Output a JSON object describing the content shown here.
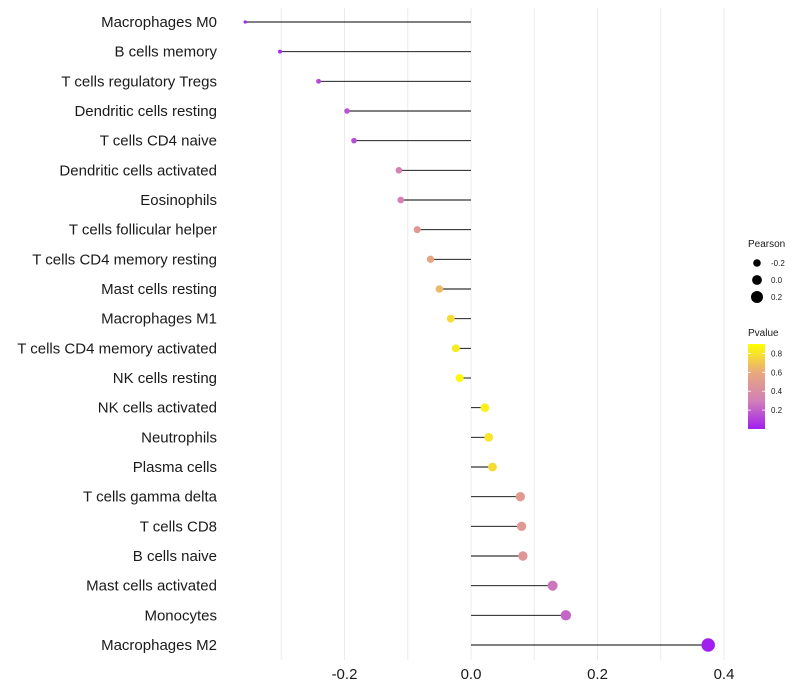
{
  "chart_data": {
    "type": "lollipop",
    "x": {
      "ticks": [
        -0.2,
        0.0,
        0.2,
        0.4
      ],
      "tick_labels": [
        "-0.2",
        "0.0",
        "0.2",
        "0.4"
      ],
      "lim": [
        -0.37,
        0.4
      ],
      "grid_minor": [
        -0.3,
        -0.1,
        0.1,
        0.3
      ]
    },
    "categories": [
      {
        "label": "Macrophages M0",
        "pearson": -0.357,
        "pvalue": 0.01
      },
      {
        "label": "B cells memory",
        "pearson": -0.302,
        "pvalue": 0.05
      },
      {
        "label": "T cells regulatory  Tregs",
        "pearson": -0.241,
        "pvalue": 0.12
      },
      {
        "label": "Dendritic cells resting",
        "pearson": -0.196,
        "pvalue": 0.16
      },
      {
        "label": "T cells CD4 naive",
        "pearson": -0.185,
        "pvalue": 0.14
      },
      {
        "label": "Dendritic cells activated",
        "pearson": -0.114,
        "pvalue": 0.32
      },
      {
        "label": "Eosinophils",
        "pearson": -0.111,
        "pvalue": 0.33
      },
      {
        "label": "T cells follicular helper",
        "pearson": -0.085,
        "pvalue": 0.48
      },
      {
        "label": "T cells CD4 memory resting",
        "pearson": -0.064,
        "pvalue": 0.58
      },
      {
        "label": "Mast cells resting",
        "pearson": -0.05,
        "pvalue": 0.66
      },
      {
        "label": "Macrophages M1",
        "pearson": -0.032,
        "pvalue": 0.78
      },
      {
        "label": "T cells CD4 memory activated",
        "pearson": -0.024,
        "pvalue": 0.83
      },
      {
        "label": "NK cells resting",
        "pearson": -0.018,
        "pvalue": 0.88
      },
      {
        "label": "NK cells activated",
        "pearson": 0.022,
        "pvalue": 0.85
      },
      {
        "label": "Neutrophils",
        "pearson": 0.028,
        "pvalue": 0.81
      },
      {
        "label": "Plasma cells",
        "pearson": 0.034,
        "pvalue": 0.78
      },
      {
        "label": "T cells gamma delta",
        "pearson": 0.078,
        "pvalue": 0.5
      },
      {
        "label": "T cells CD8",
        "pearson": 0.08,
        "pvalue": 0.49
      },
      {
        "label": "B cells naive",
        "pearson": 0.082,
        "pvalue": 0.47
      },
      {
        "label": "Mast cells activated",
        "pearson": 0.129,
        "pvalue": 0.27
      },
      {
        "label": "Monocytes",
        "pearson": 0.15,
        "pvalue": 0.22
      },
      {
        "label": "Macrophages M2",
        "pearson": 0.375,
        "pvalue": 0.001
      }
    ],
    "legend": {
      "size_title": "Pearson",
      "size_labels": [
        "-0.2",
        "0.0",
        "0.2"
      ],
      "size_values": [
        -0.2,
        0.0,
        0.2
      ],
      "color_title": "Pvalue",
      "color_ticks": [
        0.2,
        0.4,
        0.6,
        0.8
      ],
      "color_tick_labels": [
        "0.2",
        "0.4",
        "0.6",
        "0.8"
      ],
      "color_range": [
        0.0,
        0.9
      ],
      "placement": "right"
    },
    "colors": {
      "low": "#a020f0",
      "mid": "#d27fb8",
      "mid2": "#e9a87e",
      "high": "#ffff00",
      "grid": "#ebebeb",
      "stem": "#000000"
    }
  }
}
